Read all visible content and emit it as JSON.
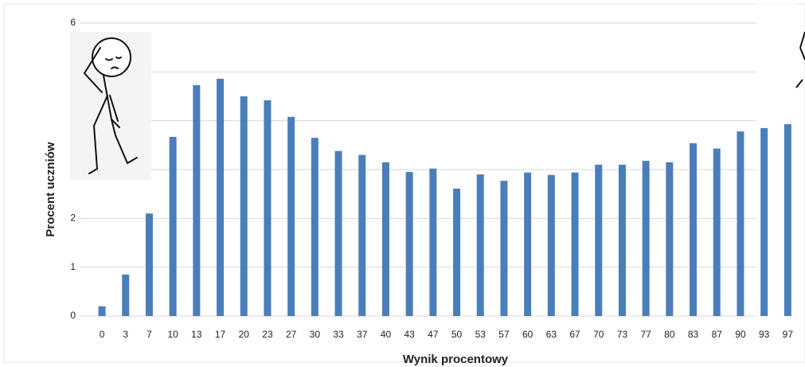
{
  "chart_data": {
    "type": "bar",
    "x_label": "Wynik procentowy",
    "y_label": "Procent uczniów",
    "categories": [
      "0",
      "3",
      "7",
      "10",
      "13",
      "17",
      "20",
      "23",
      "27",
      "30",
      "33",
      "37",
      "40",
      "43",
      "47",
      "50",
      "53",
      "57",
      "60",
      "63",
      "67",
      "70",
      "73",
      "77",
      "80",
      "83",
      "87",
      "90",
      "93",
      "97"
    ],
    "values": [
      0.2,
      0.85,
      2.1,
      3.67,
      4.73,
      4.86,
      4.5,
      4.42,
      4.08,
      3.65,
      3.38,
      3.3,
      3.15,
      2.95,
      3.02,
      2.61,
      2.9,
      2.77,
      2.94,
      2.89,
      2.94,
      3.1,
      3.1,
      3.18,
      3.15,
      3.54,
      3.43,
      3.78,
      3.85,
      3.93
    ],
    "color": "#4a7ebb",
    "ylim": [
      0,
      6
    ],
    "yticks": [
      0,
      1,
      2,
      3,
      4,
      5,
      6
    ],
    "grid": true
  }
}
